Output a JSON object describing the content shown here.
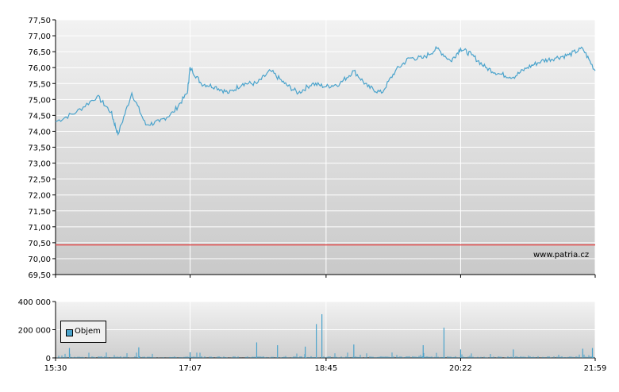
{
  "chart_data": [
    {
      "type": "line",
      "name": "price-chart",
      "ylim": [
        69.5,
        77.5
      ],
      "yticks": [
        "77,50",
        "77,00",
        "76,50",
        "76,00",
        "75,50",
        "75,00",
        "74,50",
        "74,00",
        "73,50",
        "73,00",
        "72,50",
        "72,00",
        "71,50",
        "71,00",
        "70,50",
        "70,00",
        "69,50"
      ],
      "xticks": [
        "15:30",
        "17:07",
        "18:45",
        "20:22",
        "21:59"
      ],
      "reference_line": 70.43,
      "colors": {
        "line": "#4aa3cc",
        "reference": "#e05050",
        "grid": "#ffffff"
      },
      "annotation": "www.patria.cz",
      "x": [
        "15:30",
        "15:45",
        "16:00",
        "16:10",
        "16:15",
        "16:25",
        "16:35",
        "16:45",
        "16:55",
        "17:05",
        "17:07",
        "17:15",
        "17:25",
        "17:35",
        "17:45",
        "17:55",
        "18:05",
        "18:15",
        "18:25",
        "18:35",
        "18:45",
        "18:55",
        "19:05",
        "19:15",
        "19:25",
        "19:35",
        "19:45",
        "19:55",
        "20:05",
        "20:15",
        "20:22",
        "20:30",
        "20:40",
        "20:50",
        "21:00",
        "21:10",
        "21:20",
        "21:30",
        "21:40",
        "21:50",
        "21:59"
      ],
      "series": [
        {
          "values": [
            74.3,
            74.6,
            75.1,
            74.6,
            73.9,
            75.2,
            74.2,
            74.3,
            74.6,
            75.2,
            76.0,
            75.5,
            75.4,
            75.2,
            75.5,
            75.5,
            75.9,
            75.5,
            75.2,
            75.5,
            75.4,
            75.5,
            75.9,
            75.4,
            75.2,
            75.9,
            76.3,
            76.3,
            76.6,
            76.2,
            76.6,
            76.4,
            76.0,
            75.8,
            75.7,
            76.0,
            76.2,
            76.3,
            76.4,
            76.6,
            75.9
          ]
        }
      ]
    },
    {
      "type": "bar",
      "name": "volume-chart",
      "ylim": [
        0,
        400000
      ],
      "yticks": [
        "400 000",
        "200 000",
        "0"
      ],
      "xticks": [
        "15:30",
        "17:07",
        "18:45",
        "20:22",
        "21:59"
      ],
      "legend": "Objem",
      "colors": {
        "bar": "#4aa3cc"
      },
      "spikes": [
        {
          "x": "15:40",
          "value": 70000
        },
        {
          "x": "16:30",
          "value": 75000
        },
        {
          "x": "17:07",
          "value": 40000
        },
        {
          "x": "17:55",
          "value": 110000
        },
        {
          "x": "18:10",
          "value": 90000
        },
        {
          "x": "18:30",
          "value": 80000
        },
        {
          "x": "18:38",
          "value": 240000
        },
        {
          "x": "18:42",
          "value": 310000
        },
        {
          "x": "19:05",
          "value": 95000
        },
        {
          "x": "19:55",
          "value": 90000
        },
        {
          "x": "20:10",
          "value": 215000
        },
        {
          "x": "20:22",
          "value": 60000
        },
        {
          "x": "21:00",
          "value": 60000
        },
        {
          "x": "21:50",
          "value": 65000
        },
        {
          "x": "21:57",
          "value": 70000
        }
      ]
    }
  ]
}
